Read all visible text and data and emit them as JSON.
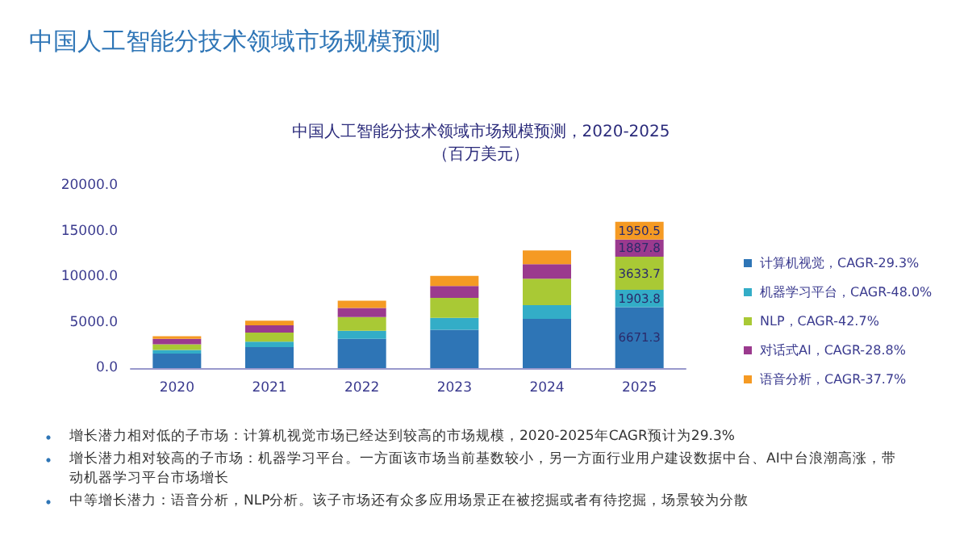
{
  "chart_data": {
    "type": "bar",
    "stacked": true,
    "title": "中国人工智能分技术领域市场规模预测，2020-2025",
    "subtitle": "（百万美元）",
    "annotations": [
      "中国人工智能分技术领域市场规模预测",
      "增长潜力相对低的子市场：计算机视觉市场已经达到较高的市场规模，2020-2025年CAGR预计为29.3%",
      "增长潜力相对较高的子市场：机器学习平台。一方面该市场当前基数较小，另一方面行业用户建设数据中台、AI中台浪潮高涨，带动机器学习平台市场增长",
      "中等增长潜力：语音分析，NLP分析。该子市场还有众多应用场景正在被挖掘或者有待挖掘，场景较为分散"
    ],
    "categories": [
      "2020",
      "2021",
      "2022",
      "2023",
      "2024",
      "2025"
    ],
    "series": [
      {
        "name": "计算机视觉，CAGR-29.3%",
        "color": "#2e75b6",
        "values": [
          1600,
          2300,
          3200,
          4200,
          5400,
          6671.3
        ],
        "value_labels": [
          null,
          null,
          null,
          null,
          null,
          "6671.3"
        ]
      },
      {
        "name": "机器学习平台，CAGR-48.0%",
        "color": "#33adc7",
        "values": [
          400,
          600,
          900,
          1300,
          1500,
          1903.8
        ],
        "value_labels": [
          null,
          null,
          null,
          null,
          null,
          "1903.8"
        ]
      },
      {
        "name": "NLP，CAGR-42.7%",
        "color": "#a9c935",
        "values": [
          600,
          1000,
          1500,
          2200,
          2900,
          3633.7
        ],
        "value_labels": [
          null,
          null,
          null,
          null,
          null,
          "3633.7"
        ]
      },
      {
        "name": "对话式AI，CAGR-28.8%",
        "color": "#9b3a8e",
        "values": [
          600,
          800,
          1000,
          1300,
          1600,
          1887.8
        ],
        "value_labels": [
          null,
          null,
          null,
          null,
          null,
          "1887.8"
        ]
      },
      {
        "name": "语音分析，CAGR-37.7%",
        "color": "#f59a23",
        "values": [
          300,
          500,
          800,
          1100,
          1500,
          1950.5
        ],
        "value_labels": [
          null,
          null,
          null,
          null,
          null,
          "1950.5"
        ]
      }
    ],
    "ylim": [
      0,
      20000
    ],
    "yticks": [
      {
        "value": 0,
        "label": "0.0"
      },
      {
        "value": 5000,
        "label": "5000.0"
      },
      {
        "value": 10000,
        "label": "10000.0"
      },
      {
        "value": 15000,
        "label": "15000.0"
      },
      {
        "value": 20000,
        "label": "20000.0"
      }
    ],
    "grid": false,
    "legend": "right"
  }
}
